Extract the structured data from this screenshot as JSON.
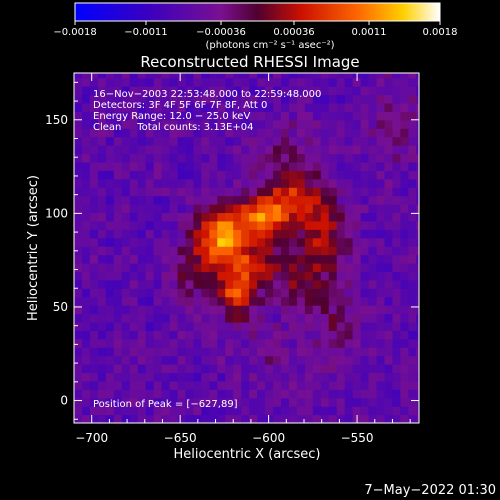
{
  "chart_data": {
    "type": "heatmap",
    "title": "Reconstructed RHESSI Image",
    "xlabel": "Heliocentric X (arcsec)",
    "ylabel": "Heliocentric Y (arcsec)",
    "xlim": [
      -710,
      -515
    ],
    "ylim": [
      -12,
      175
    ],
    "x_ticks": [
      -700,
      -650,
      -600,
      -550
    ],
    "x_tick_labels": [
      "−700",
      "−650",
      "−600",
      "−550"
    ],
    "y_ticks": [
      0,
      50,
      100,
      150
    ],
    "y_tick_labels": [
      "0",
      "50",
      "100",
      "150"
    ],
    "colorbar": {
      "range": [
        -0.0018,
        0.0018
      ],
      "ticks": [
        -0.0018,
        -0.0011,
        -0.00036,
        0.00036,
        0.0011,
        0.0018
      ],
      "tick_labels": [
        "−0.0018",
        "−0.0011",
        "−0.00036",
        "0.00036",
        "0.0011",
        "0.0018"
      ],
      "unit_label": "(photons cm⁻² s⁻¹ asec⁻²)"
    },
    "annotations": [
      "16−Nov−2003 22:53:48.000 to 22:59:48.000",
      "Detectors: 3F 4F 5F 6F 7F 8F, Att 0",
      "Energy Range: 12.0 − 25.0 keV",
      "Clean     Total counts: 3.13E+04"
    ],
    "peak_label": "Position of Peak = [−627,89]",
    "peak_position": [
      -627,
      89
    ],
    "sources": [
      {
        "x": -627,
        "y": 89,
        "amp": 0.00175,
        "sx": 9,
        "sy": 10
      },
      {
        "x": -603,
        "y": 99,
        "amp": 0.00155,
        "sx": 10,
        "sy": 8
      },
      {
        "x": -618,
        "y": 56,
        "amp": 0.00125,
        "sx": 8,
        "sy": 9
      },
      {
        "x": -585,
        "y": 108,
        "amp": 0.001,
        "sx": 12,
        "sy": 9
      },
      {
        "x": -568,
        "y": 90,
        "amp": 0.0009,
        "sx": 10,
        "sy": 12
      },
      {
        "x": -612,
        "y": 75,
        "amp": 0.001,
        "sx": 14,
        "sy": 10
      },
      {
        "x": -580,
        "y": 65,
        "amp": 0.0007,
        "sx": 12,
        "sy": 12
      },
      {
        "x": -645,
        "y": 70,
        "amp": 0.00055,
        "sx": 10,
        "sy": 14
      },
      {
        "x": -590,
        "y": 130,
        "amp": 0.0005,
        "sx": 14,
        "sy": 12
      },
      {
        "x": -560,
        "y": 40,
        "amp": 0.0005,
        "sx": 10,
        "sy": 14
      },
      {
        "x": -530,
        "y": 150,
        "amp": 0.0004,
        "sx": 10,
        "sy": 18
      },
      {
        "x": -600,
        "y": 25,
        "amp": 0.0003,
        "sx": 12,
        "sy": 10
      }
    ]
  },
  "footer": {
    "timestamp": "7−May−2022 01:30"
  }
}
